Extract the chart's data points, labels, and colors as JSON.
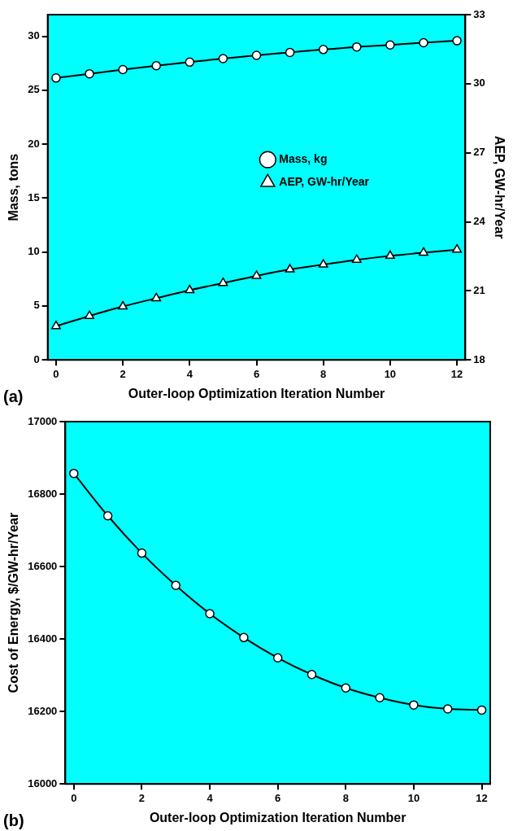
{
  "chart_data": [
    {
      "type": "line",
      "xlabel": "Outer-loop Optimization Iteration Number",
      "ylabel": "Mass, tons",
      "y2label": "AEP, GW-hr/Year",
      "x": [
        0,
        1,
        2,
        3,
        4,
        5,
        6,
        7,
        8,
        9,
        10,
        11,
        12
      ],
      "series": [
        {
          "name": "Mass, kg",
          "color": "#000000",
          "marker": "circle",
          "values": [
            26.13,
            26.52,
            26.91,
            27.27,
            27.6,
            27.93,
            28.23,
            28.5,
            28.77,
            29.01,
            29.19,
            29.4,
            29.58
          ]
        },
        {
          "name": "AEP, GW-hr/Year",
          "color": "#000000",
          "marker": "triangle",
          "axis": "y2",
          "values": [
            19.47,
            19.91,
            20.32,
            20.68,
            21.03,
            21.34,
            21.65,
            21.93,
            22.14,
            22.35,
            22.52,
            22.66,
            22.79
          ]
        }
      ],
      "xlim": [
        -0.25,
        12.25
      ],
      "xticks": [
        0,
        2,
        4,
        6,
        8,
        10,
        12
      ],
      "ylim": [
        0,
        32
      ],
      "yticks": [
        0,
        5,
        10,
        15,
        20,
        25,
        30
      ],
      "y2lim": [
        18,
        33
      ],
      "y2ticks": [
        18,
        21,
        24,
        27,
        30,
        33
      ],
      "legend": "center",
      "grid": false,
      "line_style": "solid",
      "annotations": [
        "(a)"
      ]
    },
    {
      "type": "line",
      "xlabel": "Outer-loop Optimization Iteration Number",
      "ylabel": "Cost of Energy, $/GW-hr/Year",
      "x": [
        0,
        1,
        2,
        3,
        4,
        5,
        6,
        7,
        8,
        9,
        10,
        11,
        12
      ],
      "series": [
        {
          "color": "#000000",
          "marker": "circle",
          "values": [
            16857,
            16740,
            16637,
            16548,
            16470,
            16404,
            16348,
            16302,
            16265,
            16238,
            16218,
            16207,
            16204
          ]
        }
      ],
      "xlim": [
        -0.25,
        12.25
      ],
      "xticks": [
        0,
        2,
        4,
        6,
        8,
        10,
        12
      ],
      "ylim": [
        16000,
        17000
      ],
      "yticks": [
        16000,
        16200,
        16400,
        16600,
        16800,
        17000
      ],
      "legend": false,
      "grid": false,
      "line_style": "solid",
      "annotations": [
        "(b)"
      ]
    }
  ]
}
